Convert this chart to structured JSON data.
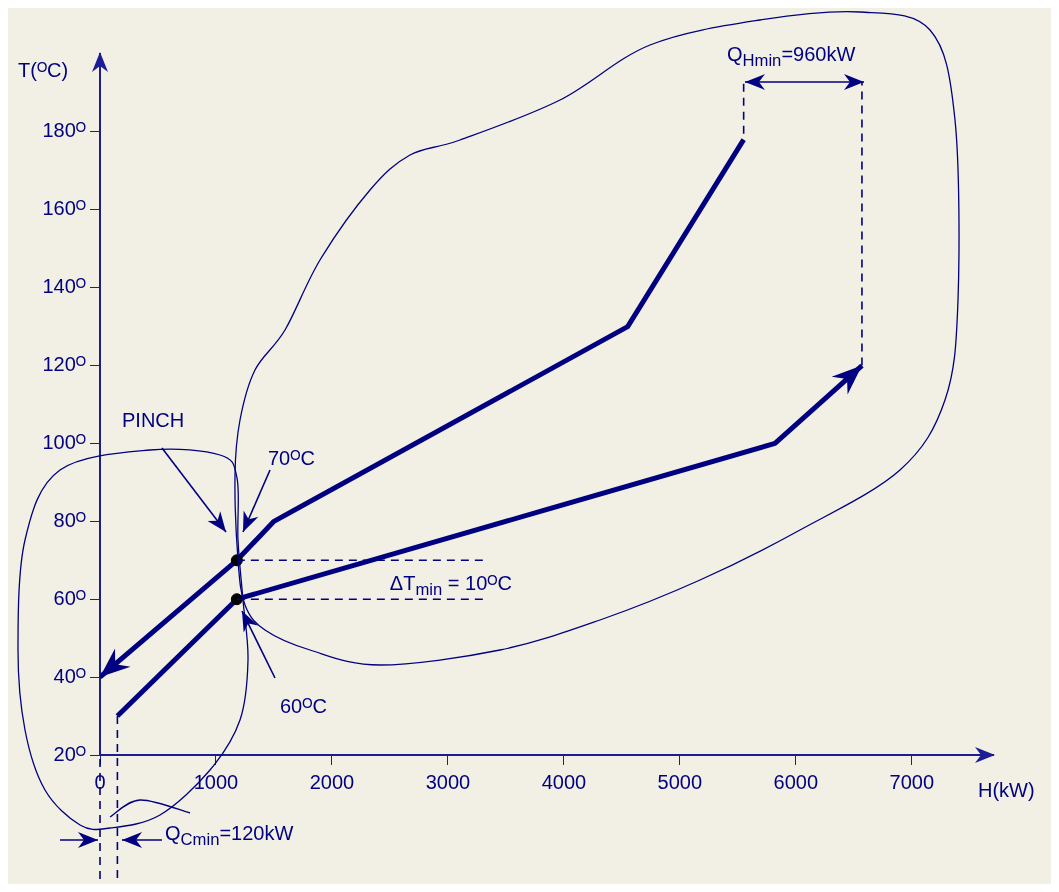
{
  "chart_data": {
    "type": "line",
    "xlabel": "H(kW)",
    "ylabel": "T(ᴼC)",
    "xlim": [
      0,
      7700
    ],
    "ylim": [
      20,
      200
    ],
    "xticks": [
      0,
      1000,
      2000,
      3000,
      4000,
      5000,
      6000,
      7000
    ],
    "yticks": [
      {
        "value": 20,
        "label": "20ᴼ"
      },
      {
        "value": 40,
        "label": "40ᴼ"
      },
      {
        "value": 60,
        "label": "60ᴼ"
      },
      {
        "value": 80,
        "label": "80ᴼ"
      },
      {
        "value": 100,
        "label": "100ᴼ"
      },
      {
        "value": 120,
        "label": "120ᴼ"
      },
      {
        "value": 140,
        "label": "140ᴼ"
      },
      {
        "value": 160,
        "label": "160ᴼ"
      },
      {
        "value": 180,
        "label": "180ᴼ"
      }
    ],
    "line_style": "solid",
    "series": [
      {
        "type": "line",
        "color": "#000080",
        "x": [
          5550,
          4550,
          1500,
          1180,
          0
        ],
        "values": [
          178,
          130,
          80,
          70,
          40
        ]
      },
      {
        "type": "line",
        "color": "#000080",
        "x": [
          150,
          1180,
          5820,
          6570
        ],
        "values": [
          30,
          60,
          100,
          120
        ]
      },
      {
        "type": "scatter",
        "color": "#000000",
        "marker": "circle",
        "x": [
          1180,
          1180
        ],
        "values": [
          70,
          60
        ]
      }
    ],
    "annotations": [
      "PINCH",
      "70ᴼC",
      "60ᴼC",
      {
        "text": "ΔT$_{min}$ = 10ᴼC",
        "x": 1180,
        "y": 70
      },
      {
        "text": "Q$_{Hmin}$=960kW",
        "x": 6570,
        "y": 120
      },
      "Q$_{Cmin}$=120kW"
    ]
  }
}
